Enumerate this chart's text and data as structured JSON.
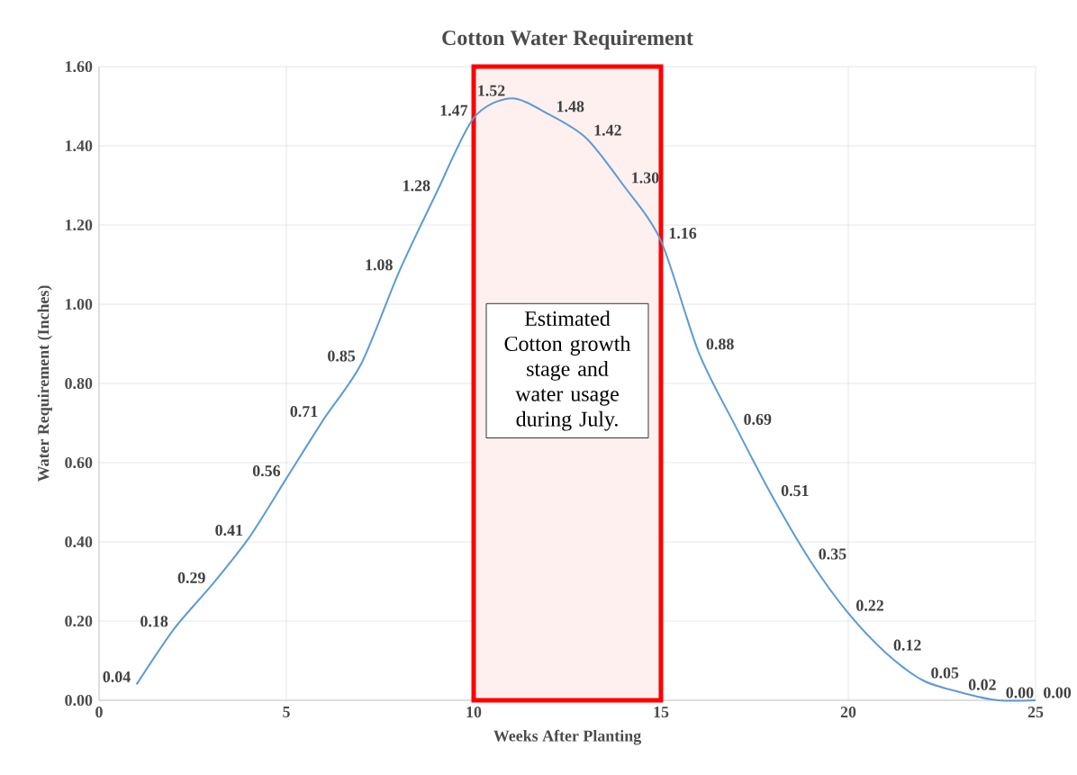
{
  "chart_data": {
    "type": "line",
    "title": "Cotton Water Requirement",
    "xlabel": "Weeks After Planting",
    "ylabel": "Water Requirement (Inches)",
    "x": [
      1,
      2,
      3,
      4,
      5,
      6,
      7,
      8,
      9,
      10,
      11,
      12,
      13,
      14,
      15,
      16,
      17,
      18,
      19,
      20,
      21,
      22,
      23,
      24,
      25
    ],
    "values": [
      0.04,
      0.18,
      0.29,
      0.41,
      0.56,
      0.71,
      0.85,
      1.08,
      1.28,
      1.47,
      1.52,
      1.48,
      1.42,
      1.3,
      1.16,
      0.88,
      0.69,
      0.51,
      0.35,
      0.22,
      0.12,
      0.05,
      0.02,
      0.0,
      0.0
    ],
    "value_labels": [
      "0.04",
      "0.18",
      "0.29",
      "0.41",
      "0.56",
      "0.71",
      "0.85",
      "1.08",
      "1.28",
      "1.47",
      "1.52",
      "1.48",
      "1.42",
      "1.30",
      "1.16",
      "0.88",
      "0.69",
      "0.51",
      "0.35",
      "0.22",
      "0.12",
      "0.05",
      "0.02",
      "0.00",
      "0.00"
    ],
    "color": "#5b9bd5",
    "xlim": [
      0,
      25
    ],
    "xticks": [
      0,
      5,
      10,
      15,
      20,
      25
    ],
    "ylim": [
      0,
      1.6
    ],
    "yticks": [
      {
        "value": 0,
        "label": "0.00"
      },
      {
        "value": 0.2,
        "label": "0.20"
      },
      {
        "value": 0.4,
        "label": "0.40"
      },
      {
        "value": 0.6,
        "label": "0.60"
      },
      {
        "value": 0.8,
        "label": "0.80"
      },
      {
        "value": 1.0,
        "label": "1.00"
      },
      {
        "value": 1.2,
        "label": "1.20"
      },
      {
        "value": 1.4,
        "label": "1.40"
      },
      {
        "value": 1.6,
        "label": "1.60"
      }
    ],
    "grid": true,
    "bands": [
      {
        "axis": "x",
        "from": 10,
        "to": 15,
        "label": "Estimated Cotton growth stage and water usage during July.",
        "color": "#ff0000"
      }
    ]
  }
}
